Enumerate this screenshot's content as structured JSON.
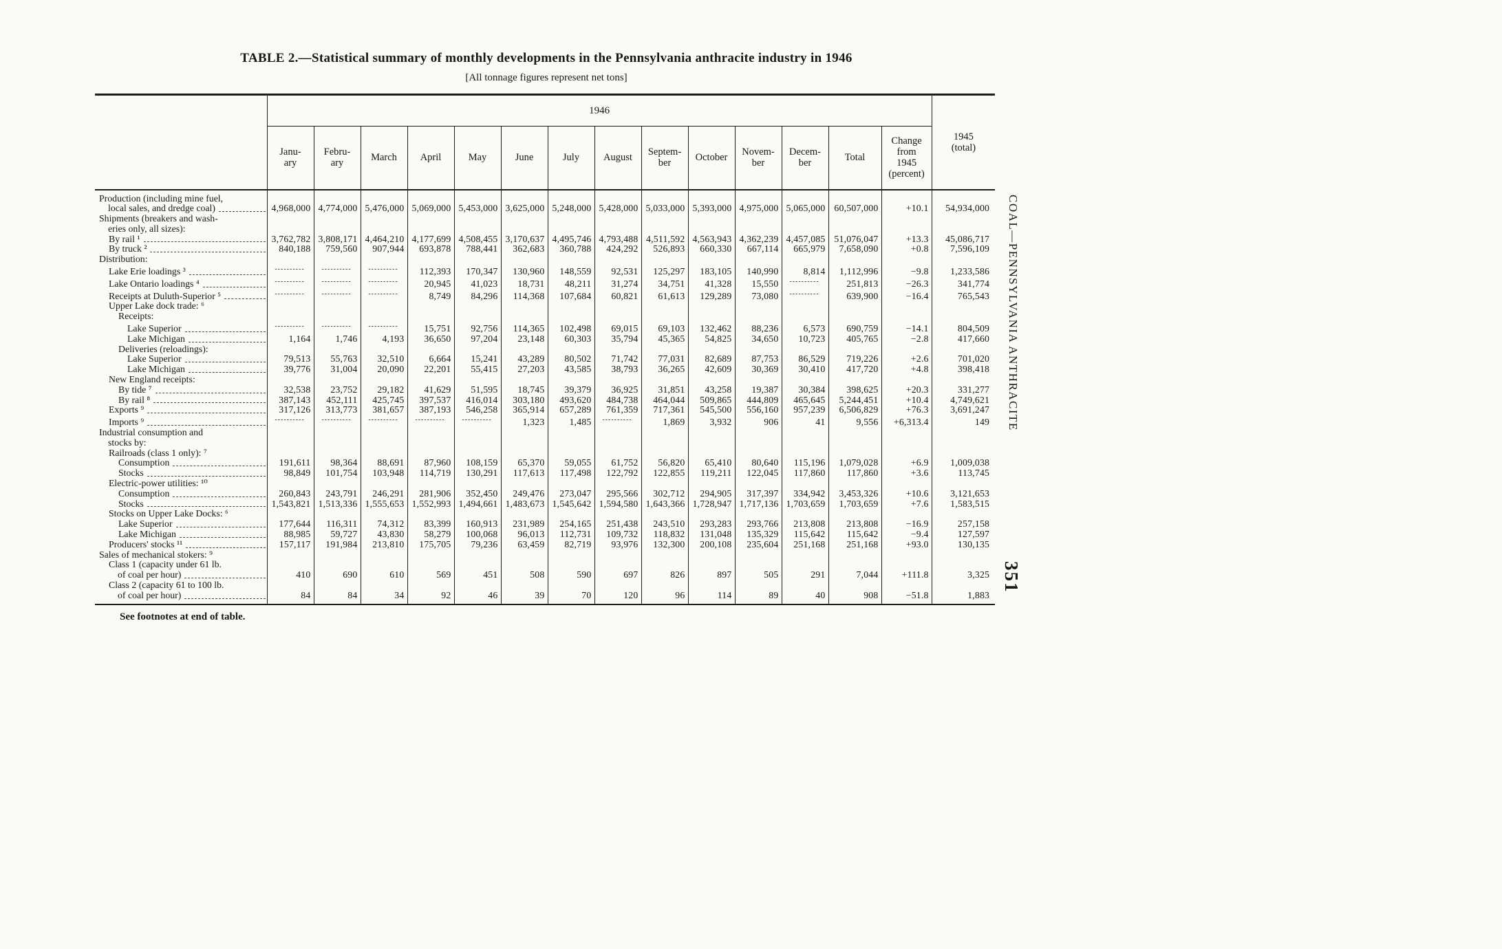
{
  "page": {
    "title": "TABLE 2.—Statistical summary of monthly developments in the Pennsylvania anthracite industry in 1946",
    "subtitle": "[All tonnage figures represent net tons]",
    "footnote": "See footnotes at end of table.",
    "margin_text": "COAL—PENNSYLVANIA ANTHRACITE",
    "page_number": "351"
  },
  "table": {
    "year_header": "1946",
    "col_1945_header": "1945\n(total)",
    "month_headers": [
      "Janu-\nary",
      "Febru-\nary",
      "March",
      "April",
      "May",
      "June",
      "July",
      "August",
      "Septem-\nber",
      "October",
      "Novem-\nber",
      "Decem-\nber",
      "Total",
      "Change\nfrom\n1945\n(percent)"
    ],
    "rows": [
      {
        "label_lines": [
          "Production (including mine fuel,",
          "local sales, and dredge coal)"
        ],
        "indent": 0,
        "cells": [
          "4,968,000",
          "4,774,000",
          "5,476,000",
          "5,069,000",
          "5,453,000",
          "3,625,000",
          "5,248,000",
          "5,428,000",
          "5,033,000",
          "5,393,000",
          "4,975,000",
          "5,065,000",
          "60,507,000",
          "+10.1",
          "54,934,000"
        ]
      },
      {
        "label_lines": [
          "Shipments (breakers and wash-",
          "eries only, all sizes):"
        ],
        "indent": 0,
        "group": true
      },
      {
        "label_lines": [
          "By rail ¹"
        ],
        "indent": 1,
        "cells": [
          "3,762,782",
          "3,808,171",
          "4,464,210",
          "4,177,699",
          "4,508,455",
          "3,170,637",
          "4,495,746",
          "4,793,488",
          "4,511,592",
          "4,563,943",
          "4,362,239",
          "4,457,085",
          "51,076,047",
          "+13.3",
          "45,086,717"
        ]
      },
      {
        "label_lines": [
          "By truck ²"
        ],
        "indent": 1,
        "cells": [
          "840,188",
          "759,560",
          "907,944",
          "693,878",
          "788,441",
          "362,683",
          "360,788",
          "424,292",
          "526,893",
          "660,330",
          "667,114",
          "665,979",
          "7,658,090",
          "+0.8",
          "7,596,109"
        ]
      },
      {
        "label_lines": [
          "Distribution:"
        ],
        "indent": 0,
        "group": true
      },
      {
        "label_lines": [
          "Lake Erie loadings ³"
        ],
        "indent": 1,
        "cells": [
          "----------",
          "----------",
          "----------",
          "112,393",
          "170,347",
          "130,960",
          "148,559",
          "92,531",
          "125,297",
          "183,105",
          "140,990",
          "8,814",
          "1,112,996",
          "−9.8",
          "1,233,586"
        ]
      },
      {
        "label_lines": [
          "Lake Ontario loadings ⁴"
        ],
        "indent": 1,
        "cells": [
          "----------",
          "----------",
          "----------",
          "20,945",
          "41,023",
          "18,731",
          "48,211",
          "31,274",
          "34,751",
          "41,328",
          "15,550",
          "----------",
          "251,813",
          "−26.3",
          "341,774"
        ]
      },
      {
        "label_lines": [
          "Receipts at Duluth-Superior ⁵"
        ],
        "indent": 1,
        "cells": [
          "----------",
          "----------",
          "----------",
          "8,749",
          "84,296",
          "114,368",
          "107,684",
          "60,821",
          "61,613",
          "129,289",
          "73,080",
          "----------",
          "639,900",
          "−16.4",
          "765,543"
        ]
      },
      {
        "label_lines": [
          "Upper Lake dock trade: ⁶"
        ],
        "indent": 1,
        "group": true
      },
      {
        "label_lines": [
          "Receipts:"
        ],
        "indent": 2,
        "group": true
      },
      {
        "label_lines": [
          "Lake Superior"
        ],
        "indent": 3,
        "cells": [
          "----------",
          "----------",
          "----------",
          "15,751",
          "92,756",
          "114,365",
          "102,498",
          "69,015",
          "69,103",
          "132,462",
          "88,236",
          "6,573",
          "690,759",
          "−14.1",
          "804,509"
        ]
      },
      {
        "label_lines": [
          "Lake Michigan"
        ],
        "indent": 3,
        "cells": [
          "1,164",
          "1,746",
          "4,193",
          "36,650",
          "97,204",
          "23,148",
          "60,303",
          "35,794",
          "45,365",
          "54,825",
          "34,650",
          "10,723",
          "405,765",
          "−2.8",
          "417,660"
        ]
      },
      {
        "label_lines": [
          "Deliveries (reloadings):"
        ],
        "indent": 2,
        "group": true
      },
      {
        "label_lines": [
          "Lake Superior"
        ],
        "indent": 3,
        "cells": [
          "79,513",
          "55,763",
          "32,510",
          "6,664",
          "15,241",
          "43,289",
          "80,502",
          "71,742",
          "77,031",
          "82,689",
          "87,753",
          "86,529",
          "719,226",
          "+2.6",
          "701,020"
        ]
      },
      {
        "label_lines": [
          "Lake Michigan"
        ],
        "indent": 3,
        "cells": [
          "39,776",
          "31,004",
          "20,090",
          "22,201",
          "55,415",
          "27,203",
          "43,585",
          "38,793",
          "36,265",
          "42,609",
          "30,369",
          "30,410",
          "417,720",
          "+4.8",
          "398,418"
        ]
      },
      {
        "label_lines": [
          "New England receipts:"
        ],
        "indent": 1,
        "group": true
      },
      {
        "label_lines": [
          "By tide ⁷"
        ],
        "indent": 2,
        "cells": [
          "32,538",
          "23,752",
          "29,182",
          "41,629",
          "51,595",
          "18,745",
          "39,379",
          "36,925",
          "31,851",
          "43,258",
          "19,387",
          "30,384",
          "398,625",
          "+20.3",
          "331,277"
        ]
      },
      {
        "label_lines": [
          "By rail ⁸"
        ],
        "indent": 2,
        "cells": [
          "387,143",
          "452,111",
          "425,745",
          "397,537",
          "416,014",
          "303,180",
          "493,620",
          "484,738",
          "464,044",
          "509,865",
          "444,809",
          "465,645",
          "5,244,451",
          "+10.4",
          "4,749,621"
        ]
      },
      {
        "label_lines": [
          "Exports ⁹"
        ],
        "indent": 1,
        "cells": [
          "317,126",
          "313,773",
          "381,657",
          "387,193",
          "546,258",
          "365,914",
          "657,289",
          "761,359",
          "717,361",
          "545,500",
          "556,160",
          "957,239",
          "6,506,829",
          "+76.3",
          "3,691,247"
        ]
      },
      {
        "label_lines": [
          "Imports ⁹"
        ],
        "indent": 1,
        "cells": [
          "----------",
          "----------",
          "----------",
          "----------",
          "----------",
          "1,323",
          "1,485",
          "----------",
          "1,869",
          "3,932",
          "906",
          "41",
          "9,556",
          "+6,313.4",
          "149"
        ]
      },
      {
        "label_lines": [
          "Industrial consumption and",
          "stocks by:"
        ],
        "indent": 0,
        "group": true
      },
      {
        "label_lines": [
          "Railroads (class 1 only): ⁷"
        ],
        "indent": 1,
        "group": true
      },
      {
        "label_lines": [
          "Consumption"
        ],
        "indent": 2,
        "cells": [
          "191,611",
          "98,364",
          "88,691",
          "87,960",
          "108,159",
          "65,370",
          "59,055",
          "61,752",
          "56,820",
          "65,410",
          "80,640",
          "115,196",
          "1,079,028",
          "+6.9",
          "1,009,038"
        ]
      },
      {
        "label_lines": [
          "Stocks"
        ],
        "indent": 2,
        "cells": [
          "98,849",
          "101,754",
          "103,948",
          "114,719",
          "130,291",
          "117,613",
          "117,498",
          "122,792",
          "122,855",
          "119,211",
          "122,045",
          "117,860",
          "117,860",
          "+3.6",
          "113,745"
        ]
      },
      {
        "label_lines": [
          "Electric-power utilities: ¹⁰"
        ],
        "indent": 1,
        "group": true
      },
      {
        "label_lines": [
          "Consumption"
        ],
        "indent": 2,
        "cells": [
          "260,843",
          "243,791",
          "246,291",
          "281,906",
          "352,450",
          "249,476",
          "273,047",
          "295,566",
          "302,712",
          "294,905",
          "317,397",
          "334,942",
          "3,453,326",
          "+10.6",
          "3,121,653"
        ]
      },
      {
        "label_lines": [
          "Stocks"
        ],
        "indent": 2,
        "cells": [
          "1,543,821",
          "1,513,336",
          "1,555,653",
          "1,552,993",
          "1,494,661",
          "1,483,673",
          "1,545,642",
          "1,594,580",
          "1,643,366",
          "1,728,947",
          "1,717,136",
          "1,703,659",
          "1,703,659",
          "+7.6",
          "1,583,515"
        ]
      },
      {
        "label_lines": [
          "Stocks on Upper Lake Docks: ⁶"
        ],
        "indent": 1,
        "group": true
      },
      {
        "label_lines": [
          "Lake Superior"
        ],
        "indent": 2,
        "cells": [
          "177,644",
          "116,311",
          "74,312",
          "83,399",
          "160,913",
          "231,989",
          "254,165",
          "251,438",
          "243,510",
          "293,283",
          "293,766",
          "213,808",
          "213,808",
          "−16.9",
          "257,158"
        ]
      },
      {
        "label_lines": [
          "Lake Michigan"
        ],
        "indent": 2,
        "cells": [
          "88,985",
          "59,727",
          "43,830",
          "58,279",
          "100,068",
          "96,013",
          "112,731",
          "109,732",
          "118,832",
          "131,048",
          "135,329",
          "115,642",
          "115,642",
          "−9.4",
          "127,597"
        ]
      },
      {
        "label_lines": [
          "Producers' stocks ¹¹"
        ],
        "indent": 1,
        "cells": [
          "157,117",
          "191,984",
          "213,810",
          "175,705",
          "79,236",
          "63,459",
          "82,719",
          "93,976",
          "132,300",
          "200,108",
          "235,604",
          "251,168",
          "251,168",
          "+93.0",
          "130,135"
        ]
      },
      {
        "label_lines": [
          "Sales of mechanical stokers: ⁹"
        ],
        "indent": 0,
        "group": true
      },
      {
        "label_lines": [
          "Class 1 (capacity under 61 lb.",
          "of coal per hour)"
        ],
        "indent": 1,
        "cells": [
          "410",
          "690",
          "610",
          "569",
          "451",
          "508",
          "590",
          "697",
          "826",
          "897",
          "505",
          "291",
          "7,044",
          "+111.8",
          "3,325"
        ]
      },
      {
        "label_lines": [
          "Class 2 (capacity 61 to 100 lb.",
          "of coal per hour)"
        ],
        "indent": 1,
        "cells": [
          "84",
          "84",
          "34",
          "92",
          "46",
          "39",
          "70",
          "120",
          "96",
          "114",
          "89",
          "40",
          "908",
          "−51.8",
          "1,883"
        ]
      }
    ]
  }
}
